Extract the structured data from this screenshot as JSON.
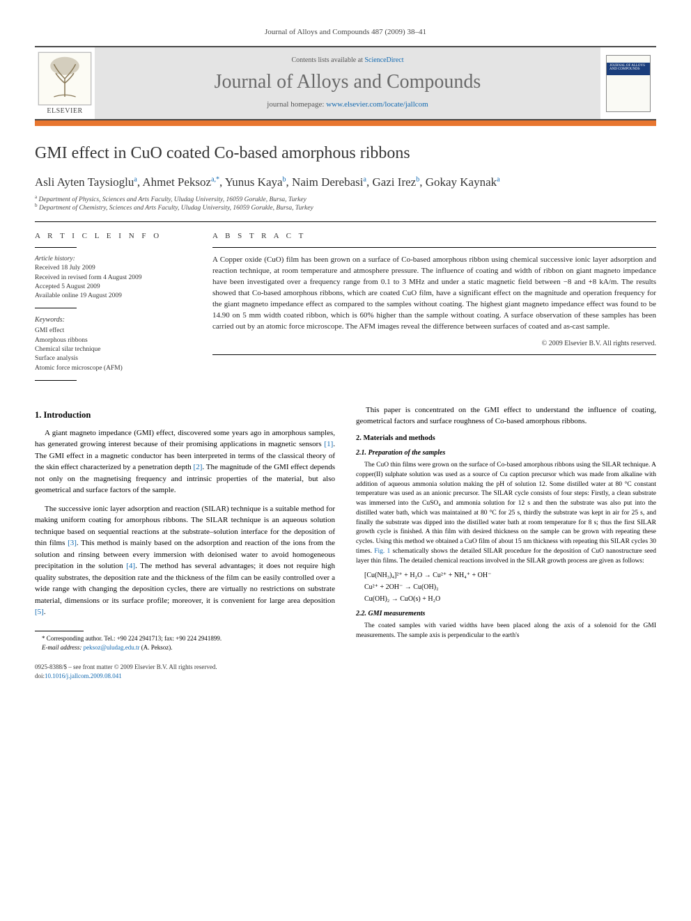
{
  "journal_ref": "Journal of Alloys and Compounds 487 (2009) 38–41",
  "header": {
    "contents_prefix": "Contents lists available at ",
    "contents_link": "ScienceDirect",
    "journal_title": "Journal of Alloys and Compounds",
    "homepage_prefix": "journal homepage: ",
    "homepage_link": "www.elsevier.com/locate/jallcom",
    "elsevier_label": "ELSEVIER",
    "cover_text": "JOURNAL OF ALLOYS AND COMPOUNDS"
  },
  "article": {
    "title": "GMI effect in CuO coated Co-based amorphous ribbons",
    "authors_html": "Asli Ayten Taysioglu<sup>a</sup>, Ahmet Peksoz<sup>a,*</sup>, Yunus Kaya<sup>b</sup>, Naim Derebasi<sup>a</sup>, Gazi Irez<sup>b</sup>, Gokay Kaynak<sup>a</sup>",
    "affiliations": [
      "Department of Physics, Sciences and Arts Faculty, Uludag University, 16059 Gorukle, Bursa, Turkey",
      "Department of Chemistry, Sciences and Arts Faculty, Uludag University, 16059 Gorukle, Bursa, Turkey"
    ],
    "affil_sup": [
      "a",
      "b"
    ]
  },
  "info": {
    "heading": "A R T I C L E   I N F O",
    "history_label": "Article history:",
    "history": [
      "Received 18 July 2009",
      "Received in revised form 4 August 2009",
      "Accepted 5 August 2009",
      "Available online 19 August 2009"
    ],
    "keywords_label": "Keywords:",
    "keywords": [
      "GMI effect",
      "Amorphous ribbons",
      "Chemical silar technique",
      "Surface analysis",
      "Atomic force microscope (AFM)"
    ]
  },
  "abstract": {
    "heading": "A B S T R A C T",
    "text": "A Copper oxide (CuO) film has been grown on a surface of Co-based amorphous ribbon using chemical successive ionic layer adsorption and reaction technique, at room temperature and atmosphere pressure. The influence of coating and width of ribbon on giant magneto impedance have been investigated over a frequency range from 0.1 to 3 MHz and under a static magnetic field between −8 and +8 kA/m. The results showed that Co-based amorphous ribbons, which are coated CuO film, have a significant effect on the magnitude and operation frequency for the giant magneto impedance effect as compared to the samples without coating. The highest giant magneto impedance effect was found to be 14.90 on 5 mm width coated ribbon, which is 60% higher than the sample without coating. A surface observation of these samples has been carried out by an atomic force microscope. The AFM images reveal the difference between surfaces of coated and as-cast sample.",
    "copyright": "© 2009 Elsevier B.V. All rights reserved."
  },
  "body": {
    "intro_head": "1.  Introduction",
    "intro_p1": "A giant magneto impedance (GMI) effect, discovered some years ago in amorphous samples, has generated growing interest because of their promising applications in magnetic sensors [1]. The GMI effect in a magnetic conductor has been interpreted in terms of the classical theory of the skin effect characterized by a penetration depth [2]. The magnitude of the GMI effect depends not only on the magnetising frequency and intrinsic properties of the material, but also geometrical and surface factors of the sample.",
    "intro_p2": "The successive ionic layer adsorption and reaction (SILAR) technique is a suitable method for making uniform coating for amorphous ribbons. The SILAR technique is an aqueous solution technique based on sequential reactions at the substrate–solution interface for the deposition of thin films [3]. This method is mainly based on the adsorption and reaction of the ions from the solution and rinsing between every immersion with deionised water to avoid homogeneous precipitation in the solution [4]. The method has several advantages; it does not require high quality substrates, the deposition rate and the thickness of the film can be easily controlled over a wide range with changing the deposition cycles, there are virtually no restrictions on substrate material, dimensions or its surface profile; moreover, it is convenient for large area deposition [5].",
    "intro_p3": "This paper is concentrated on the GMI effect to understand the influence of coating, geometrical factors and surface roughness of Co-based amorphous ribbons.",
    "mat_head": "2.  Materials and methods",
    "prep_head": "2.1.  Preparation of the samples",
    "prep_p1": "The CuO thin films were grown on the surface of Co-based amorphous ribbons using the SILAR technique. A copper(II) sulphate solution was used as a source of Cu caption precursor which was made from alkaline with addition of aqueous ammonia solution making the pH of solution 12. Some distilled water at 80 °C constant temperature was used as an anionic precursor. The SILAR cycle consists of four steps: Firstly, a clean substrate was immersed into the CuSO₄ and ammonia solution for 12 s and then the substrate was also put into the distilled water bath, which was maintained at 80 °C for 25 s, thirdly the substrate was kept in air for 25 s, and finally the substrate was dipped into the distilled water bath at room temperature for 8 s; thus the first SILAR growth cycle is finished. A thin film with desired thickness on the sample can be grown with repeating these cycles. Using this method we obtained a CuO film of about 15 nm thickness with repeating this SILAR cycles 30 times. Fig. 1 schematically shows the detailed SILAR procedure for the deposition of CuO nanostructure seed layer thin films. The detailed chemical reactions involved in the SILAR growth process are given as follows:",
    "eqn1": "[Cu(NH₃)₄]²⁺ + H₂O → Cu²⁺ + NH₄⁺ + OH⁻",
    "eqn2": "Cu²⁺ + 2OH⁻ → Cu(OH)₂",
    "eqn3": "Cu(OH)₂ → CuO(s) + H₂O",
    "gmi_head": "2.2.  GMI measurements",
    "gmi_p1": "The coated samples with varied widths have been placed along the axis of a solenoid for the GMI measurements. The sample axis is perpendicular to the earth's"
  },
  "footnote": {
    "corr": "* Corresponding author. Tel.: +90 224 2941713; fax: +90 224 2941899.",
    "email_label": "E-mail address:",
    "email": "peksoz@uludag.edu.tr",
    "email_suffix": "(A. Peksoz)."
  },
  "footer": {
    "line1": "0925-8388/$ – see front matter © 2009 Elsevier B.V. All rights reserved.",
    "doi_label": "doi:",
    "doi": "10.1016/j.jallcom.2009.08.041"
  },
  "colors": {
    "orange": "#e8762f",
    "link": "#1068b0",
    "header_bg": "#e4e4e4",
    "rule": "#454545"
  }
}
